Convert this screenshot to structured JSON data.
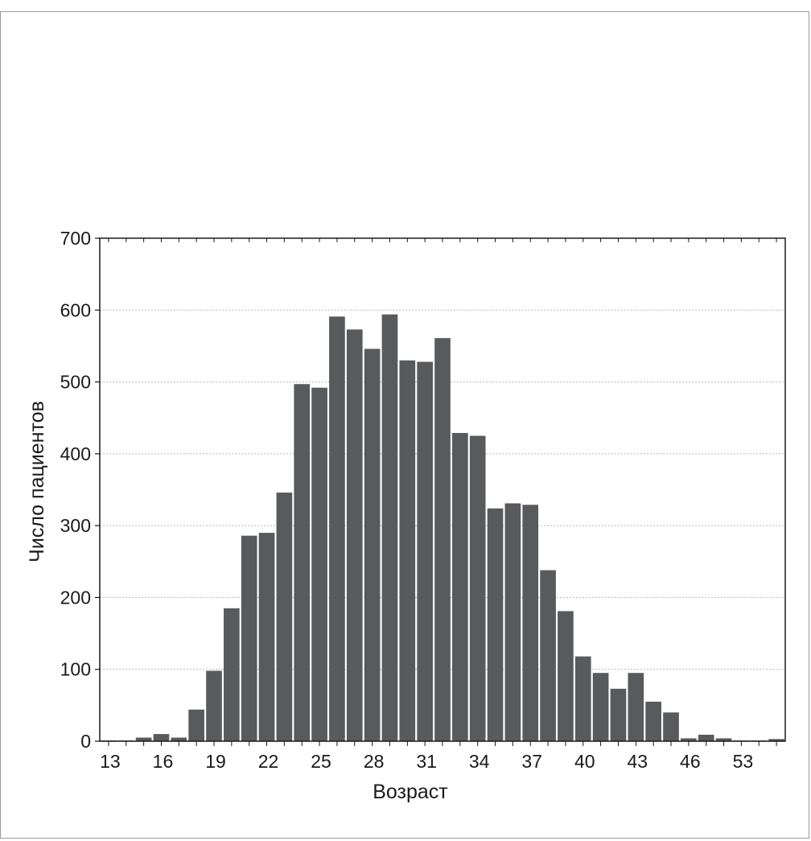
{
  "chart_data": {
    "type": "bar",
    "xlabel": "Возраст",
    "ylabel": "Число пациентов",
    "ylim": [
      0,
      700
    ],
    "yticks": [
      0,
      100,
      200,
      300,
      400,
      500,
      600,
      700
    ],
    "grid": true,
    "bar_color": "#595a5c",
    "x_tick_labels": [
      "13",
      "16",
      "19",
      "22",
      "25",
      "28",
      "31",
      "34",
      "37",
      "40",
      "43",
      "46",
      "53"
    ],
    "values": [
      1,
      1,
      5,
      10,
      5,
      44,
      98,
      185,
      286,
      290,
      346,
      497,
      492,
      591,
      573,
      546,
      594,
      530,
      528,
      561,
      429,
      425,
      324,
      331,
      329,
      238,
      181,
      118,
      95,
      73,
      95,
      55,
      40,
      4,
      9,
      4,
      1,
      1,
      3
    ]
  }
}
